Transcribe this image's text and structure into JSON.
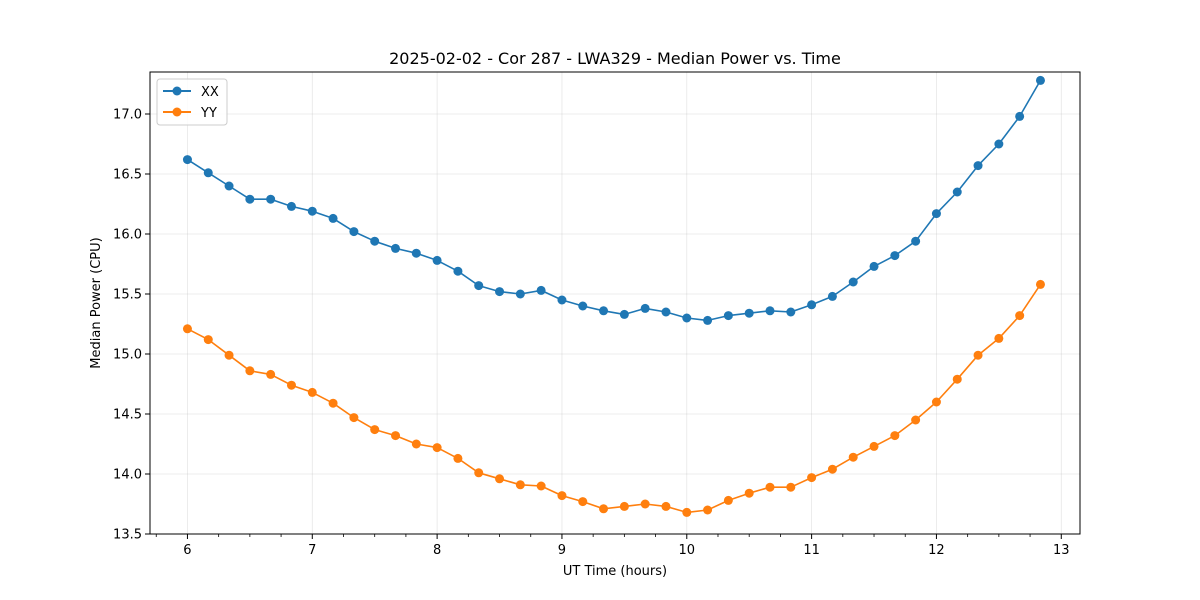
{
  "chart_data": {
    "type": "line",
    "title": "2025-02-02 - Cor 287 - LWA329 - Median Power vs. Time",
    "xlabel": "UT Time (hours)",
    "ylabel": "Median Power (CPU)",
    "xlim": [
      5.7,
      13.15
    ],
    "ylim": [
      13.5,
      17.35
    ],
    "xticks": [
      6,
      7,
      8,
      9,
      10,
      11,
      12,
      13
    ],
    "yticks": [
      13.5,
      14.0,
      14.5,
      15.0,
      15.5,
      16.0,
      16.5,
      17.0
    ],
    "x_minor_step": 0.25,
    "grid": true,
    "legend_position": "upper-left",
    "x": [
      6.0,
      6.1667,
      6.3333,
      6.5,
      6.6667,
      6.8333,
      7.0,
      7.1667,
      7.3333,
      7.5,
      7.6667,
      7.8333,
      8.0,
      8.1667,
      8.3333,
      8.5,
      8.6667,
      8.8333,
      9.0,
      9.1667,
      9.3333,
      9.5,
      9.6667,
      9.8333,
      10.0,
      10.1667,
      10.3333,
      10.5,
      10.6667,
      10.8333,
      11.0,
      11.1667,
      11.3333,
      11.5,
      11.6667,
      11.8333,
      12.0,
      12.1667,
      12.3333,
      12.5,
      12.6667,
      12.8333
    ],
    "series": [
      {
        "name": "XX",
        "color": "#1f77b4",
        "values": [
          16.62,
          16.51,
          16.4,
          16.29,
          16.29,
          16.23,
          16.19,
          16.13,
          16.02,
          15.94,
          15.88,
          15.84,
          15.78,
          15.69,
          15.57,
          15.52,
          15.5,
          15.53,
          15.45,
          15.4,
          15.36,
          15.33,
          15.38,
          15.35,
          15.3,
          15.28,
          15.32,
          15.34,
          15.36,
          15.35,
          15.41,
          15.48,
          15.6,
          15.73,
          15.82,
          15.94,
          16.17,
          16.35,
          16.57,
          16.75,
          16.98,
          17.28
        ]
      },
      {
        "name": "YY",
        "color": "#ff7f0e",
        "values": [
          15.21,
          15.12,
          14.99,
          14.86,
          14.83,
          14.74,
          14.68,
          14.59,
          14.47,
          14.37,
          14.32,
          14.25,
          14.22,
          14.13,
          14.01,
          13.96,
          13.91,
          13.9,
          13.82,
          13.77,
          13.71,
          13.73,
          13.75,
          13.73,
          13.68,
          13.7,
          13.78,
          13.84,
          13.89,
          13.89,
          13.97,
          14.04,
          14.14,
          14.23,
          14.32,
          14.45,
          14.6,
          14.79,
          14.99,
          15.13,
          15.32,
          15.58
        ]
      }
    ]
  }
}
